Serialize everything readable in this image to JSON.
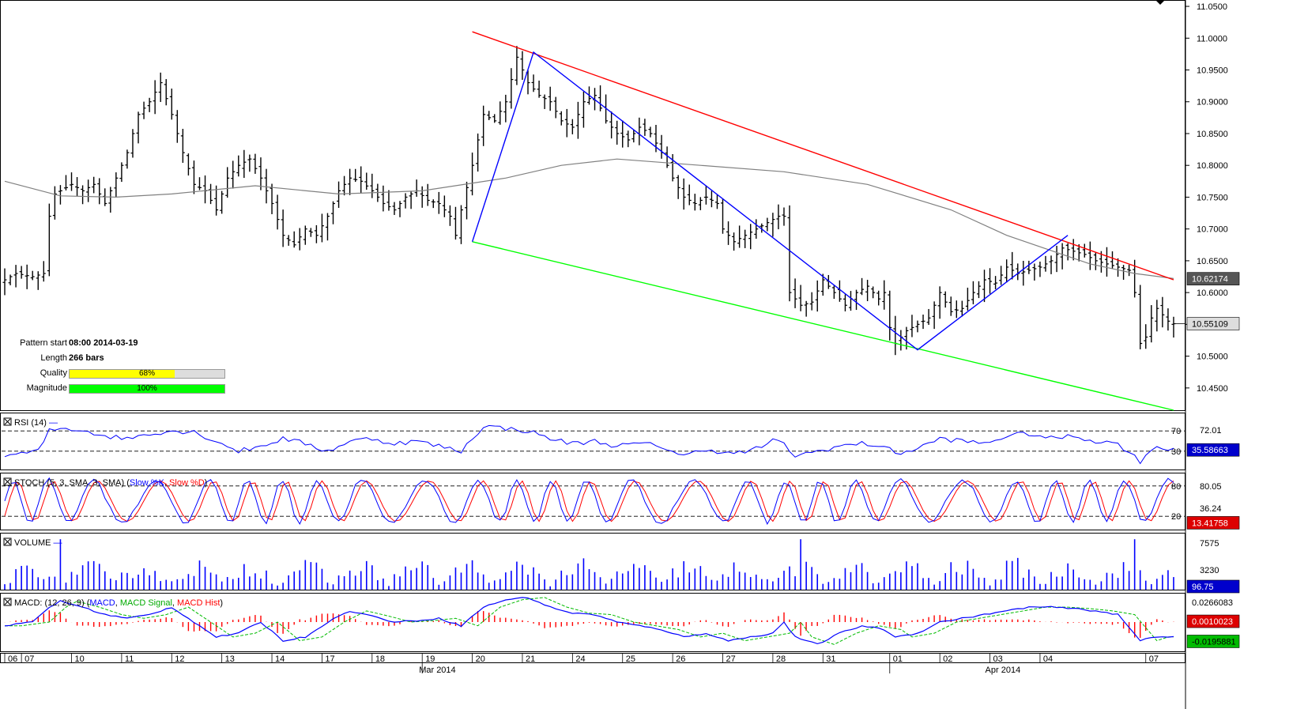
{
  "pattern_info": {
    "pattern_start_label": "Pattern start",
    "pattern_start_value": "08:00 2014-03-19",
    "length_label": "Length",
    "length_value": "266 bars",
    "quality_label": "Quality",
    "quality_value": "68%",
    "quality_fraction": 0.68,
    "quality_color": "#ffff00",
    "magnitude_label": "Magnitude",
    "magnitude_value": "100%",
    "magnitude_fraction": 1.0,
    "magnitude_color": "#00ff00"
  },
  "chart_data": [
    {
      "type": "ohlc",
      "panel": "price",
      "ylim": [
        10.415,
        11.06
      ],
      "y_ticks": [
        "11.0500",
        "11.0000",
        "10.9500",
        "10.9000",
        "10.8500",
        "10.8000",
        "10.7500",
        "10.7000",
        "10.6500",
        "10.6000",
        "10.5500",
        "10.5000",
        "10.4500"
      ],
      "x_ticks": [
        "06",
        "07",
        "10",
        "11",
        "12",
        "13",
        "14",
        "17",
        "18",
        "19",
        "20",
        "21",
        "24",
        "25",
        "26",
        "27",
        "28",
        "31",
        "01",
        "02",
        "03",
        "04",
        "07"
      ],
      "x_month_labels": [
        "Mar 2014",
        "Apr 2014"
      ],
      "close_path": [
        [
          0,
          10.62
        ],
        [
          2,
          10.63
        ],
        [
          5,
          10.625
        ],
        [
          7,
          10.63
        ],
        [
          8,
          10.72
        ],
        [
          9,
          10.755
        ],
        [
          12,
          10.77
        ],
        [
          14,
          10.76
        ],
        [
          16,
          10.77
        ],
        [
          18,
          10.74
        ],
        [
          20,
          10.78
        ],
        [
          22,
          10.82
        ],
        [
          24,
          10.88
        ],
        [
          26,
          10.9
        ],
        [
          28,
          10.93
        ],
        [
          30,
          10.88
        ],
        [
          32,
          10.82
        ],
        [
          34,
          10.77
        ],
        [
          36,
          10.76
        ],
        [
          38,
          10.73
        ],
        [
          40,
          10.78
        ],
        [
          42,
          10.8
        ],
        [
          44,
          10.81
        ],
        [
          46,
          10.78
        ],
        [
          48,
          10.74
        ],
        [
          50,
          10.69
        ],
        [
          52,
          10.675
        ],
        [
          54,
          10.7
        ],
        [
          56,
          10.69
        ],
        [
          58,
          10.72
        ],
        [
          60,
          10.76
        ],
        [
          62,
          10.78
        ],
        [
          64,
          10.775
        ],
        [
          66,
          10.76
        ],
        [
          68,
          10.74
        ],
        [
          70,
          10.73
        ],
        [
          72,
          10.75
        ],
        [
          74,
          10.76
        ],
        [
          76,
          10.745
        ],
        [
          78,
          10.74
        ],
        [
          80,
          10.72
        ],
        [
          81,
          10.69
        ],
        [
          82,
          10.73
        ],
        [
          84,
          10.8
        ],
        [
          86,
          10.88
        ],
        [
          88,
          10.87
        ],
        [
          90,
          10.9
        ],
        [
          92,
          10.97
        ],
        [
          94,
          10.93
        ],
        [
          96,
          10.91
        ],
        [
          98,
          10.9
        ],
        [
          100,
          10.87
        ],
        [
          102,
          10.86
        ],
        [
          104,
          10.9
        ],
        [
          106,
          10.91
        ],
        [
          108,
          10.87
        ],
        [
          110,
          10.85
        ],
        [
          112,
          10.84
        ],
        [
          114,
          10.86
        ],
        [
          116,
          10.85
        ],
        [
          118,
          10.82
        ],
        [
          120,
          10.78
        ],
        [
          122,
          10.75
        ],
        [
          124,
          10.74
        ],
        [
          126,
          10.75
        ],
        [
          128,
          10.74
        ],
        [
          129,
          10.7
        ],
        [
          131,
          10.68
        ],
        [
          133,
          10.69
        ],
        [
          135,
          10.7
        ],
        [
          137,
          10.71
        ],
        [
          139,
          10.72
        ],
        [
          140,
          10.72
        ],
        [
          141,
          10.6
        ],
        [
          143,
          10.58
        ],
        [
          145,
          10.585
        ],
        [
          147,
          10.62
        ],
        [
          149,
          10.6
        ],
        [
          151,
          10.58
        ],
        [
          153,
          10.6
        ],
        [
          155,
          10.61
        ],
        [
          157,
          10.59
        ],
        [
          158,
          10.6
        ],
        [
          159,
          10.545
        ],
        [
          160,
          10.52
        ],
        [
          162,
          10.54
        ],
        [
          164,
          10.55
        ],
        [
          166,
          10.56
        ],
        [
          168,
          10.6
        ],
        [
          170,
          10.57
        ],
        [
          172,
          10.575
        ],
        [
          174,
          10.6
        ],
        [
          176,
          10.62
        ],
        [
          178,
          10.615
        ],
        [
          180,
          10.64
        ],
        [
          182,
          10.63
        ],
        [
          184,
          10.635
        ],
        [
          186,
          10.64
        ],
        [
          188,
          10.65
        ],
        [
          190,
          10.67
        ],
        [
          192,
          10.665
        ],
        [
          194,
          10.66
        ],
        [
          196,
          10.65
        ],
        [
          198,
          10.645
        ],
        [
          200,
          10.64
        ],
        [
          202,
          10.635
        ],
        [
          203,
          10.6
        ],
        [
          204,
          10.52
        ],
        [
          205,
          10.53
        ],
        [
          206,
          10.56
        ],
        [
          207,
          10.575
        ],
        [
          208,
          10.565
        ],
        [
          209,
          10.555
        ],
        [
          210,
          10.551
        ]
      ],
      "n_bars": 211,
      "sma_line": [
        [
          0,
          10.775
        ],
        [
          10,
          10.752
        ],
        [
          20,
          10.75
        ],
        [
          30,
          10.755
        ],
        [
          45,
          10.768
        ],
        [
          60,
          10.755
        ],
        [
          75,
          10.76
        ],
        [
          90,
          10.78
        ],
        [
          100,
          10.8
        ],
        [
          110,
          10.81
        ],
        [
          125,
          10.8
        ],
        [
          140,
          10.79
        ],
        [
          155,
          10.77
        ],
        [
          170,
          10.73
        ],
        [
          180,
          10.69
        ],
        [
          195,
          10.645
        ],
        [
          203,
          10.63
        ],
        [
          210,
          10.622
        ]
      ],
      "upper_line": [
        [
          84,
          11.01
        ],
        [
          210,
          10.62
        ]
      ],
      "lower_line": [
        [
          84,
          10.68
        ],
        [
          210,
          10.415
        ]
      ],
      "pattern_zigzag": [
        [
          84,
          10.68
        ],
        [
          95,
          10.978
        ],
        [
          164,
          10.51
        ],
        [
          191,
          10.69
        ]
      ],
      "current_sma_label": "10.62174",
      "current_price_label": "10.55109",
      "colors": {
        "bars": "#000000",
        "sma": "#808080",
        "upper": "#ff0000",
        "lower": "#00ff00",
        "zigzag": "#0000ff"
      }
    },
    {
      "type": "line",
      "panel": "rsi",
      "title": "RSI (14)",
      "ylim": [
        0,
        100
      ],
      "levels": [
        70,
        30
      ],
      "level_labels": [
        "70",
        "30"
      ],
      "axis_labels": [
        "72.01"
      ],
      "current_value_label": "35.58663",
      "series": [
        {
          "name": "RSI (14)",
          "color": "#0000ff"
        }
      ],
      "path": [
        [
          0,
          22
        ],
        [
          3,
          25
        ],
        [
          6,
          30
        ],
        [
          8,
          70
        ],
        [
          10,
          75
        ],
        [
          14,
          72
        ],
        [
          18,
          60
        ],
        [
          22,
          55
        ],
        [
          26,
          65
        ],
        [
          30,
          70
        ],
        [
          34,
          68
        ],
        [
          38,
          50
        ],
        [
          42,
          30
        ],
        [
          46,
          40
        ],
        [
          50,
          55
        ],
        [
          54,
          45
        ],
        [
          58,
          30
        ],
        [
          62,
          50
        ],
        [
          66,
          55
        ],
        [
          70,
          45
        ],
        [
          74,
          50
        ],
        [
          78,
          40
        ],
        [
          82,
          30
        ],
        [
          86,
          80
        ],
        [
          90,
          75
        ],
        [
          94,
          70
        ],
        [
          98,
          55
        ],
        [
          102,
          45
        ],
        [
          106,
          50
        ],
        [
          110,
          40
        ],
        [
          114,
          45
        ],
        [
          118,
          40
        ],
        [
          122,
          20
        ],
        [
          126,
          35
        ],
        [
          130,
          25
        ],
        [
          134,
          30
        ],
        [
          136,
          40
        ],
        [
          138,
          50
        ],
        [
          140,
          45
        ],
        [
          142,
          20
        ],
        [
          146,
          30
        ],
        [
          150,
          40
        ],
        [
          154,
          45
        ],
        [
          158,
          40
        ],
        [
          160,
          25
        ],
        [
          164,
          35
        ],
        [
          168,
          55
        ],
        [
          172,
          50
        ],
        [
          176,
          45
        ],
        [
          180,
          60
        ],
        [
          184,
          65
        ],
        [
          188,
          55
        ],
        [
          192,
          60
        ],
        [
          196,
          50
        ],
        [
          200,
          45
        ],
        [
          204,
          10
        ],
        [
          206,
          35
        ],
        [
          210,
          36
        ]
      ]
    },
    {
      "type": "line",
      "panel": "stochastic",
      "title": "STOCH (5, 3, SMA, 3, SMA)",
      "ylim": [
        0,
        100
      ],
      "levels": [
        80,
        20
      ],
      "level_labels": [
        "80",
        "20"
      ],
      "axis_labels": [
        "80.05",
        "36.24"
      ],
      "current_value_label": "13.41758",
      "series": [
        {
          "name": "Slow %K",
          "color": "#0000ff"
        },
        {
          "name": "Slow %D",
          "color": "#ff0000"
        }
      ]
    },
    {
      "type": "bar",
      "panel": "volume",
      "title": "VOLUME",
      "ylim": [
        0,
        9000
      ],
      "axis_labels": [
        "7575",
        "3230"
      ],
      "current_value_label": "96.75",
      "series": [
        {
          "name": "VOLUME",
          "color": "#0000ff"
        }
      ]
    },
    {
      "type": "line",
      "panel": "macd",
      "title": "MACD: (12, 26, 9)",
      "ylim": [
        -0.035,
        0.035
      ],
      "axis_labels": [
        "0.0266083"
      ],
      "current_value_labels": [
        "0.0010023",
        "-0.0195881"
      ],
      "series": [
        {
          "name": "MACD",
          "color": "#0000ff"
        },
        {
          "name": "MACD Signal",
          "color": "#00bb00"
        },
        {
          "name": "MACD Hist",
          "color": "#ff0000"
        }
      ],
      "path": [
        [
          0,
          -0.005
        ],
        [
          5,
          0.0
        ],
        [
          8,
          0.02
        ],
        [
          10,
          0.028
        ],
        [
          14,
          0.02
        ],
        [
          18,
          0.01
        ],
        [
          22,
          0.005
        ],
        [
          26,
          0.01
        ],
        [
          30,
          0.02
        ],
        [
          34,
          0.0
        ],
        [
          38,
          -0.02
        ],
        [
          42,
          -0.015
        ],
        [
          46,
          0.0
        ],
        [
          50,
          -0.025
        ],
        [
          54,
          -0.02
        ],
        [
          58,
          0.0
        ],
        [
          62,
          0.015
        ],
        [
          66,
          0.008
        ],
        [
          70,
          0.0
        ],
        [
          74,
          0.002
        ],
        [
          78,
          0.005
        ],
        [
          82,
          -0.005
        ],
        [
          86,
          0.02
        ],
        [
          90,
          0.03
        ],
        [
          94,
          0.033
        ],
        [
          98,
          0.02
        ],
        [
          102,
          0.012
        ],
        [
          106,
          0.01
        ],
        [
          110,
          0.0
        ],
        [
          114,
          -0.005
        ],
        [
          118,
          -0.01
        ],
        [
          122,
          -0.02
        ],
        [
          126,
          -0.015
        ],
        [
          130,
          -0.025
        ],
        [
          134,
          -0.02
        ],
        [
          138,
          -0.015
        ],
        [
          140,
          0.0
        ],
        [
          142,
          -0.02
        ],
        [
          146,
          -0.03
        ],
        [
          150,
          -0.015
        ],
        [
          154,
          -0.005
        ],
        [
          158,
          -0.01
        ],
        [
          160,
          -0.02
        ],
        [
          164,
          -0.015
        ],
        [
          168,
          0.0
        ],
        [
          172,
          0.005
        ],
        [
          176,
          0.01
        ],
        [
          180,
          0.015
        ],
        [
          184,
          0.02
        ],
        [
          188,
          0.02
        ],
        [
          192,
          0.018
        ],
        [
          196,
          0.015
        ],
        [
          200,
          0.01
        ],
        [
          204,
          -0.025
        ],
        [
          206,
          -0.02
        ],
        [
          210,
          -0.0195
        ]
      ]
    }
  ]
}
